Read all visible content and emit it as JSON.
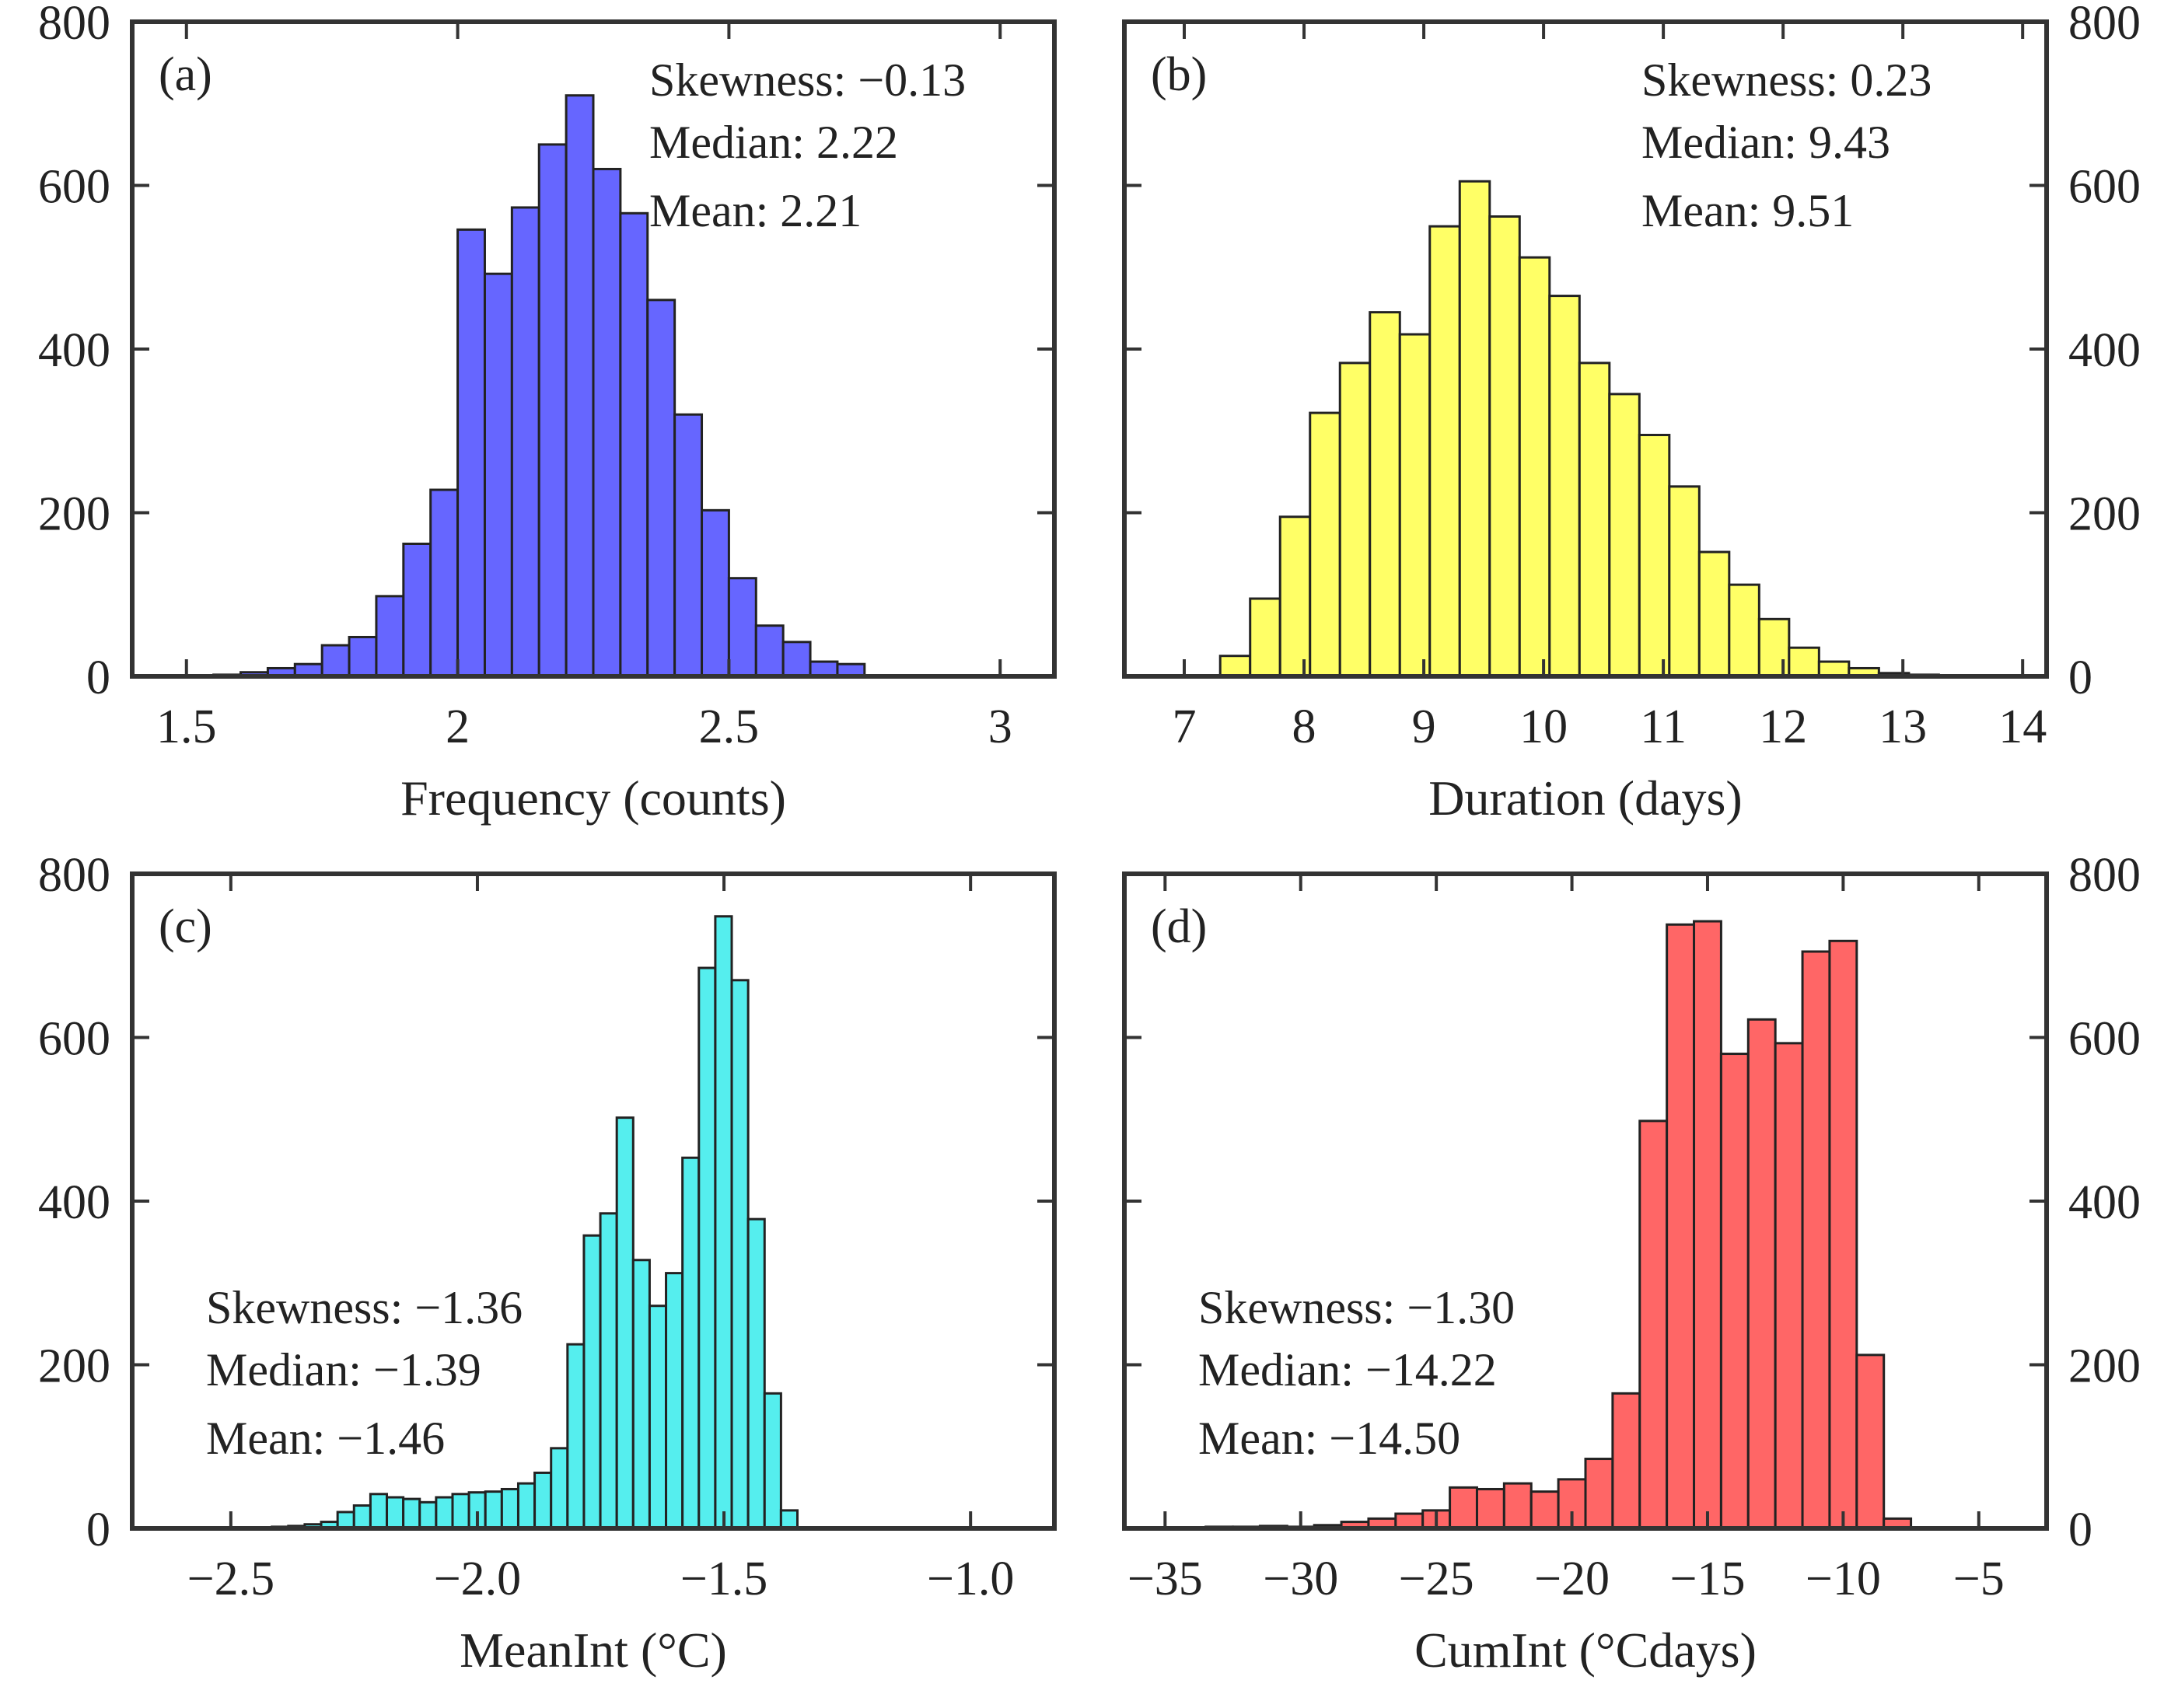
{
  "chart_data": [
    {
      "type": "bar",
      "panel_label": "(a)",
      "xlabel": "Frequency (counts)",
      "ylabel": "",
      "xlim": [
        1.4,
        3.1
      ],
      "ylim": [
        0,
        800
      ],
      "xticks": [
        1.5,
        2,
        2.5,
        3
      ],
      "xtick_labels": [
        "1.5",
        "2",
        "2.5",
        "3"
      ],
      "yticks": [
        0,
        200,
        400,
        600,
        800
      ],
      "ytick_labels": [
        "0",
        "200",
        "400",
        "600",
        "800"
      ],
      "y_axis_side": "left",
      "bar_color": "#6666ff",
      "bin_start": 1.55,
      "bin_width": 0.05,
      "values": [
        2,
        5,
        10,
        15,
        38,
        48,
        98,
        162,
        228,
        546,
        492,
        573,
        650,
        710,
        620,
        566,
        460,
        320,
        203,
        120,
        62,
        42,
        18,
        15
      ],
      "stats_position": "top-right",
      "stats": [
        "Skewness: −0.13",
        "Median: 2.22",
        "Mean: 2.21"
      ]
    },
    {
      "type": "bar",
      "panel_label": "(b)",
      "xlabel": "Duration (days)",
      "ylabel": "",
      "xlim": [
        6.5,
        14.2
      ],
      "ylim": [
        0,
        800
      ],
      "xticks": [
        7,
        8,
        9,
        10,
        11,
        12,
        13,
        14
      ],
      "xtick_labels": [
        "7",
        "8",
        "9",
        "10",
        "11",
        "12",
        "13",
        "14"
      ],
      "yticks": [
        0,
        200,
        400,
        600,
        800
      ],
      "ytick_labels": [
        "0",
        "200",
        "400",
        "600",
        "800"
      ],
      "y_axis_side": "right",
      "bar_color": "#ffff66",
      "bin_start": 7.3,
      "bin_width": 0.25,
      "values": [
        25,
        95,
        195,
        322,
        383,
        445,
        418,
        550,
        605,
        562,
        512,
        465,
        383,
        345,
        295,
        232,
        152,
        112,
        70,
        35,
        18,
        10,
        4,
        2
      ],
      "stats_position": "top-right",
      "stats": [
        "Skewness: 0.23",
        "Median: 9.43",
        "Mean: 9.51"
      ]
    },
    {
      "type": "bar",
      "panel_label": "(c)",
      "xlabel": "MeanInt (°C)",
      "ylabel": "",
      "xlim": [
        -2.7,
        -0.83
      ],
      "ylim": [
        0,
        800
      ],
      "xticks": [
        -2.5,
        -2.0,
        -1.5,
        -1.0
      ],
      "xtick_labels": [
        "−2.5",
        "−2.0",
        "−1.5",
        "−1.0"
      ],
      "yticks": [
        0,
        200,
        400,
        600,
        800
      ],
      "ytick_labels": [
        "0",
        "200",
        "400",
        "600",
        "800"
      ],
      "y_axis_side": "left",
      "bar_color": "#55eeee",
      "bin_start": -2.45,
      "bin_width": 0.0333,
      "values": [
        1,
        2,
        3,
        5,
        8,
        20,
        28,
        42,
        38,
        36,
        32,
        38,
        42,
        44,
        45,
        48,
        55,
        68,
        98,
        225,
        358,
        385,
        502,
        328,
        272,
        312,
        453,
        685,
        748,
        670,
        378,
        165,
        22
      ],
      "stats_position": "lower-left",
      "stats": [
        "Skewness: −1.36",
        "Median: −1.39",
        "Mean: −1.46"
      ]
    },
    {
      "type": "bar",
      "panel_label": "(d)",
      "xlabel": "CumInt (°Cdays)",
      "ylabel": "",
      "xlim": [
        -36.5,
        -2.5
      ],
      "ylim": [
        0,
        800
      ],
      "xticks": [
        -35,
        -30,
        -25,
        -20,
        -15,
        -10,
        -5
      ],
      "xtick_labels": [
        "−35",
        "−30",
        "−25",
        "−20",
        "−15",
        "−10",
        "−5"
      ],
      "yticks": [
        0,
        200,
        400,
        600,
        800
      ],
      "ytick_labels": [
        "0",
        "200",
        "400",
        "600",
        "800"
      ],
      "y_axis_side": "right",
      "bar_color": "#ff6666",
      "bin_start": -34.5,
      "bin_width": 1.0,
      "values": [
        1,
        2,
        2,
        3,
        2,
        4,
        8,
        12,
        18,
        22,
        50,
        48,
        55,
        45,
        60,
        85,
        165,
        498,
        738,
        742,
        580,
        622,
        593,
        705,
        718,
        212,
        12
      ],
      "stats_position": "lower-left",
      "stats": [
        "Skewness: −1.30",
        "Median: −14.22",
        "Mean: −14.50"
      ]
    }
  ]
}
